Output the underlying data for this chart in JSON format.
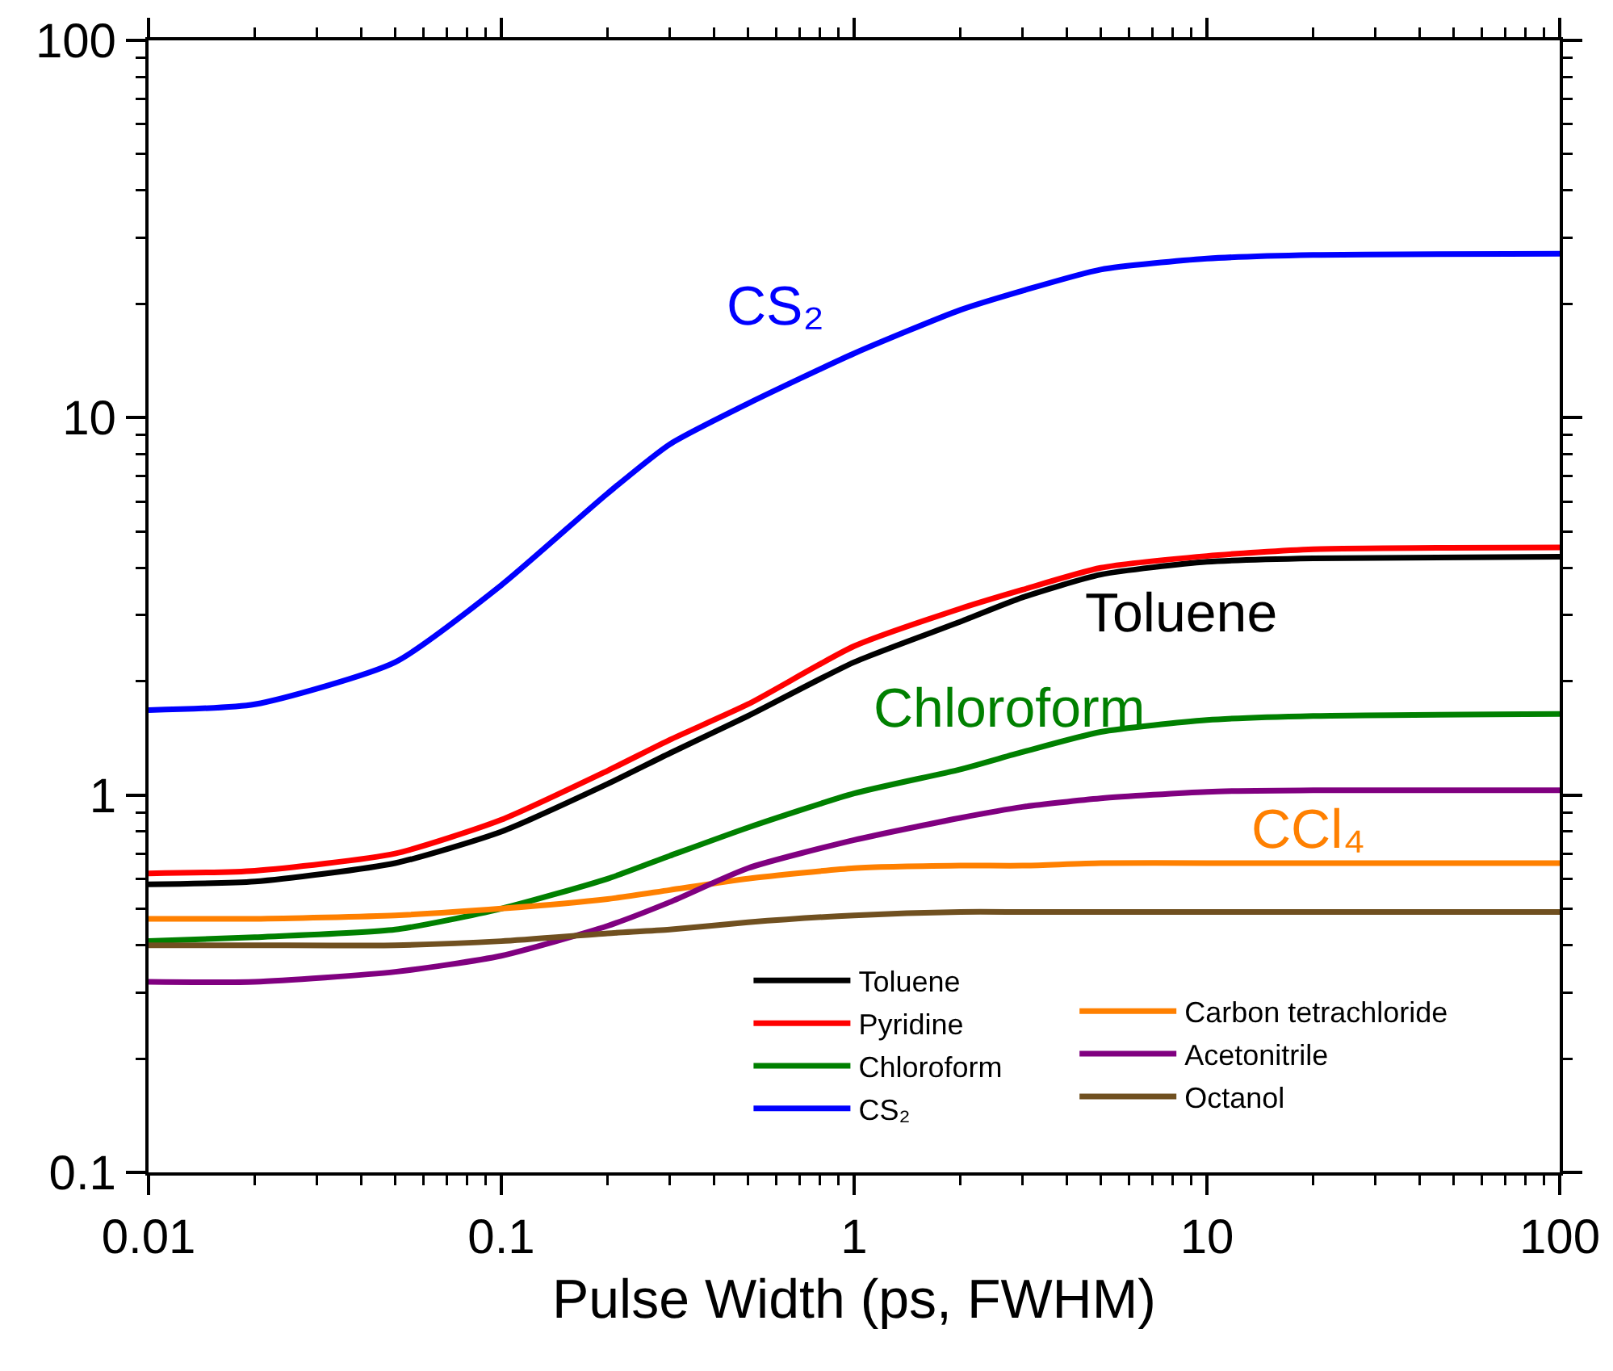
{
  "chart_data": {
    "type": "line",
    "xlabel": "Pulse Width (ps, FWHM)",
    "log": "xy",
    "grid": false,
    "legend": "bottom",
    "marker": "none",
    "line_style": "solid",
    "xlim": [
      0.01,
      100
    ],
    "xticks": [
      0.01,
      0.1,
      1,
      10,
      100
    ],
    "ylim": [
      0.1,
      100
    ],
    "yticks": [
      0.1,
      1,
      10,
      100
    ],
    "x": [
      0.01,
      0.02,
      0.05,
      0.1,
      0.2,
      0.3,
      0.5,
      1,
      2,
      3,
      5,
      10,
      20,
      100
    ],
    "series": [
      {
        "name": "Toluene",
        "color": "#000000",
        "values": [
          0.58,
          0.59,
          0.66,
          0.8,
          1.07,
          1.29,
          1.62,
          2.25,
          2.88,
          3.34,
          3.84,
          4.15,
          4.24,
          4.28
        ]
      },
      {
        "name": "Pyridine",
        "color": "#ff0000",
        "values": [
          0.62,
          0.63,
          0.7,
          0.86,
          1.16,
          1.4,
          1.74,
          2.48,
          3.12,
          3.5,
          4.0,
          4.3,
          4.48,
          4.53
        ]
      },
      {
        "name": "Chloroform",
        "color": "#008000",
        "values": [
          0.41,
          0.42,
          0.44,
          0.5,
          0.6,
          0.69,
          0.82,
          1.01,
          1.17,
          1.3,
          1.47,
          1.58,
          1.62,
          1.64
        ]
      },
      {
        "name": "CS₂",
        "color": "#0000ff",
        "values": [
          1.68,
          1.74,
          2.25,
          3.6,
          6.3,
          8.5,
          10.9,
          14.8,
          19.3,
          21.7,
          24.7,
          26.4,
          27,
          27.2
        ]
      },
      {
        "name": "Carbon tetrachloride",
        "color": "#ff8000",
        "values": [
          0.47,
          0.47,
          0.48,
          0.5,
          0.53,
          0.56,
          0.6,
          0.64,
          0.65,
          0.65,
          0.66,
          0.66,
          0.66,
          0.66
        ]
      },
      {
        "name": "Acetonitrile",
        "color": "#800080",
        "values": [
          0.32,
          0.32,
          0.34,
          0.375,
          0.45,
          0.52,
          0.64,
          0.76,
          0.87,
          0.93,
          0.98,
          1.02,
          1.03,
          1.03
        ]
      },
      {
        "name": "Octanol",
        "color": "#705020",
        "values": [
          0.4,
          0.4,
          0.4,
          0.41,
          0.43,
          0.44,
          0.46,
          0.48,
          0.49,
          0.49,
          0.49,
          0.49,
          0.49,
          0.49
        ]
      }
    ],
    "annotations": [
      "CS₂",
      "Toluene",
      "Chloroform",
      "CCl₄"
    ]
  }
}
